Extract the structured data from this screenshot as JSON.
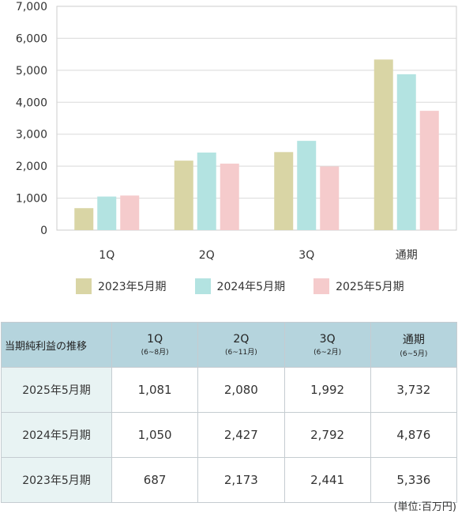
{
  "chart_data": {
    "type": "bar",
    "categories": [
      "1Q",
      "2Q",
      "3Q",
      "通期"
    ],
    "series": [
      {
        "name": "2023年5月期",
        "color": "#d9d5a5",
        "values": [
          687,
          2173,
          2441,
          5336
        ]
      },
      {
        "name": "2024年5月期",
        "color": "#b3e3e1",
        "values": [
          1050,
          2427,
          2792,
          4876
        ]
      },
      {
        "name": "2025年5月期",
        "color": "#f5cbcc",
        "values": [
          1081,
          2080,
          1992,
          3732
        ]
      }
    ],
    "ylim": [
      0,
      7000
    ],
    "yticks": [
      0,
      1000,
      2000,
      3000,
      4000,
      5000,
      6000,
      7000
    ],
    "ytick_labels": [
      "0",
      "1,000",
      "2,000",
      "3,000",
      "4,000",
      "5,000",
      "6,000",
      "7,000"
    ],
    "grid": true,
    "legend_position": "bottom"
  },
  "table": {
    "corner": "当期純利益の推移",
    "columns": [
      {
        "label": "1Q",
        "sub": "(6~8月)"
      },
      {
        "label": "2Q",
        "sub": "(6~11月)"
      },
      {
        "label": "3Q",
        "sub": "(6~2月)"
      },
      {
        "label": "通期",
        "sub": "(6~5月)"
      }
    ],
    "rows": [
      {
        "label": "2025年5月期",
        "cells": [
          "1,081",
          "2,080",
          "1,992",
          "3,732"
        ]
      },
      {
        "label": "2024年5月期",
        "cells": [
          "1,050",
          "2,427",
          "2,792",
          "4,876"
        ]
      },
      {
        "label": "2023年5月期",
        "cells": [
          "687",
          "2,173",
          "2,441",
          "5,336"
        ]
      }
    ]
  },
  "unit_note": "(単位:百万円)"
}
